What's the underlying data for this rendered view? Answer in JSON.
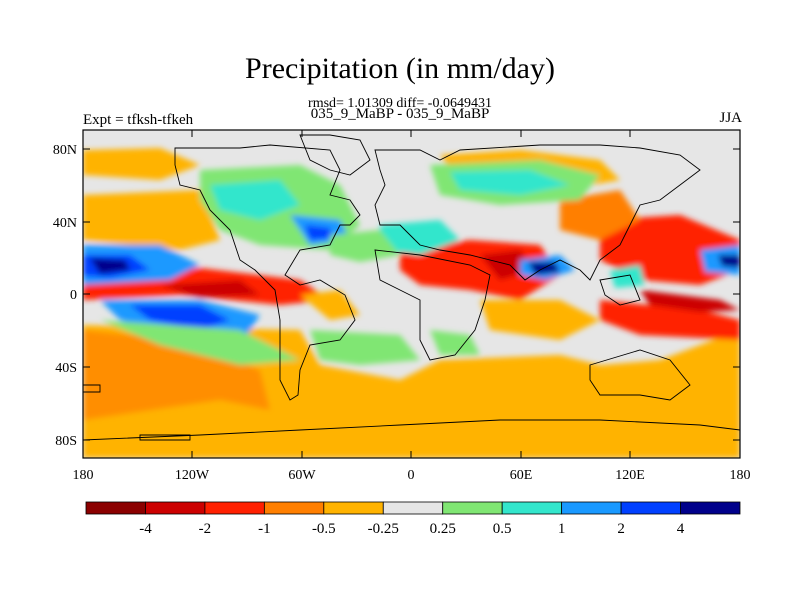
{
  "title": "Precipitation (in mm/day)",
  "subtitle_stats": "rmsd= 1.01309 diff= -0.0649431",
  "subtitle_experiment": "035_9_MaBP - 035_9_MaBP",
  "left_label": "Expt = tfksh-tfkeh",
  "right_label": "JJA",
  "lat_ticks": [
    "80N",
    "40N",
    "0",
    "40S",
    "80S"
  ],
  "lon_ticks": [
    "180",
    "120W",
    "60W",
    "0",
    "60E",
    "120E",
    "180"
  ],
  "colorbar": {
    "colors": [
      "#8b0000",
      "#cc0000",
      "#ff2000",
      "#ff7f00",
      "#ffb300",
      "#e6e6e6",
      "#80e673",
      "#33e6cc",
      "#1a99ff",
      "#0040ff",
      "#00008b"
    ],
    "labels": [
      "-4",
      "-2",
      "-1",
      "-0.5",
      "-0.25",
      "0.25",
      "0.5",
      "1",
      "2",
      "4"
    ]
  }
}
